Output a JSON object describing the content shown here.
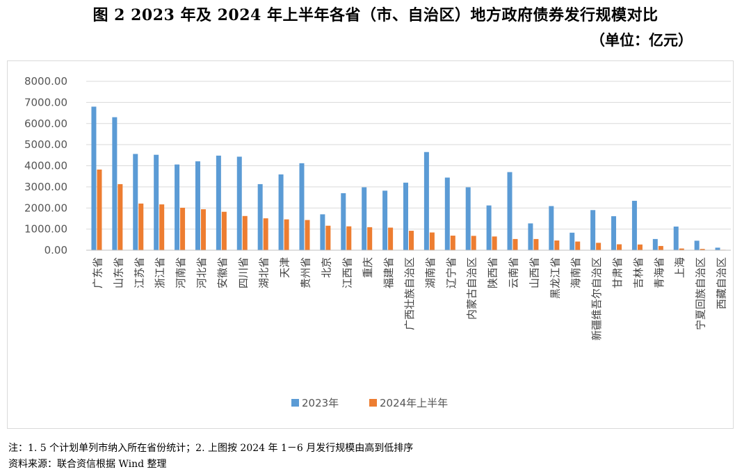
{
  "title": "图 2  2023 年及 2024 年上半年各省（市、自治区）地方政府债券发行规模对比",
  "unit": "（单位：亿元）",
  "notes": {
    "line1": "注：1. 5 个计划单列市纳入所在省份统计；2. 上图按 2024 年 1－6 月发行规模由高到低排序",
    "line2": "资料来源：联合资信根据 Wind 整理"
  },
  "colors": {
    "s2023": "#5B9BD5",
    "s2024": "#ED7D31",
    "grid": "#d9d9d9"
  },
  "chart_data": {
    "type": "bar",
    "ylim": [
      0,
      8000
    ],
    "yticks": [
      "0.00",
      "1000.00",
      "2000.00",
      "3000.00",
      "4000.00",
      "5000.00",
      "6000.00",
      "7000.00",
      "8000.00"
    ],
    "categories": [
      "广东省",
      "山东省",
      "江苏省",
      "浙江省",
      "河南省",
      "河北省",
      "安徽省",
      "四川省",
      "湖北省",
      "天津",
      "贵州省",
      "北京",
      "江西省",
      "重庆",
      "福建省",
      "广西壮族自治区",
      "湖南省",
      "辽宁省",
      "内蒙古自治区",
      "陕西省",
      "云南省",
      "山西省",
      "黑龙江省",
      "海南省",
      "新疆维吾尔自治区",
      "甘肃省",
      "吉林省",
      "青海省",
      "上海",
      "宁夏回族自治区",
      "西藏自治区"
    ],
    "series": [
      {
        "name": "2023年",
        "values": [
          6800,
          6300,
          4560,
          4520,
          4060,
          4210,
          4480,
          4430,
          3130,
          3590,
          4120,
          1700,
          2700,
          2980,
          2820,
          3200,
          4650,
          3440,
          2980,
          2120,
          3700,
          1270,
          2090,
          830,
          1900,
          1610,
          2340,
          530,
          1120,
          450,
          120
        ]
      },
      {
        "name": "2024年上半年",
        "values": [
          3820,
          3130,
          2210,
          2170,
          2010,
          1940,
          1820,
          1620,
          1510,
          1460,
          1430,
          1160,
          1130,
          1090,
          1070,
          920,
          840,
          690,
          680,
          650,
          530,
          530,
          460,
          410,
          350,
          280,
          270,
          200,
          80,
          60,
          20
        ]
      }
    ],
    "legend_position": "bottom",
    "grid": true
  }
}
